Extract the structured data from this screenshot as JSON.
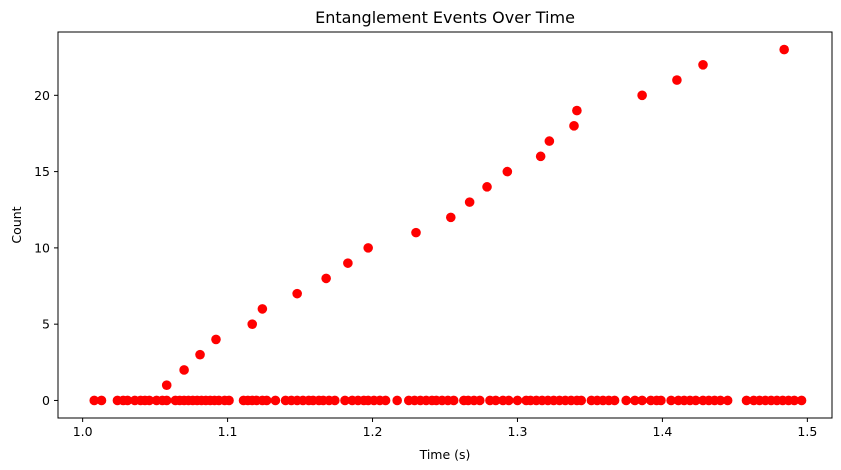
{
  "chart_data": {
    "type": "scatter",
    "title": "Entanglement Events Over Time",
    "xlabel": "Time (s)",
    "ylabel": "Count",
    "xlim": [
      0.983,
      1.517
    ],
    "ylim": [
      -1.15,
      24.15
    ],
    "xticks": [
      1.0,
      1.1,
      1.2,
      1.3,
      1.4,
      1.5
    ],
    "xtick_labels": [
      "1.0",
      "1.1",
      "1.2",
      "1.3",
      "1.4",
      "1.5"
    ],
    "yticks": [
      0,
      5,
      10,
      15,
      20
    ],
    "ytick_labels": [
      "0",
      "5",
      "10",
      "15",
      "20"
    ],
    "grid": false,
    "marker_color": "#ff0000",
    "series": [
      {
        "x": [
          1.008,
          1.013,
          1.024,
          1.028,
          1.031,
          1.036,
          1.04,
          1.043,
          1.046,
          1.051,
          1.055,
          1.058,
          1.064,
          1.067,
          1.07,
          1.073,
          1.076,
          1.079,
          1.082,
          1.085,
          1.088,
          1.091,
          1.094,
          1.098,
          1.101,
          1.111,
          1.114,
          1.117,
          1.12,
          1.124,
          1.127,
          1.133,
          1.14,
          1.144,
          1.148,
          1.152,
          1.156,
          1.159,
          1.163,
          1.166,
          1.17,
          1.174,
          1.181,
          1.186,
          1.19,
          1.194,
          1.197,
          1.201,
          1.205,
          1.209,
          1.217,
          1.225,
          1.229,
          1.233,
          1.237,
          1.241,
          1.244,
          1.248,
          1.252,
          1.256,
          1.263,
          1.266,
          1.27,
          1.274,
          1.281,
          1.285,
          1.29,
          1.294,
          1.3,
          1.306,
          1.309,
          1.313,
          1.317,
          1.321,
          1.325,
          1.329,
          1.333,
          1.337,
          1.341,
          1.344,
          1.351,
          1.355,
          1.359,
          1.363,
          1.367,
          1.375,
          1.381,
          1.386,
          1.392,
          1.396,
          1.399,
          1.406,
          1.411,
          1.415,
          1.419,
          1.423,
          1.428,
          1.432,
          1.436,
          1.44,
          1.445,
          1.458,
          1.463,
          1.467,
          1.471,
          1.475,
          1.479,
          1.483,
          1.487,
          1.491,
          1.496
        ],
        "y": [
          0,
          0,
          0,
          0,
          0,
          0,
          0,
          0,
          0,
          0,
          0,
          0,
          0,
          0,
          0,
          0,
          0,
          0,
          0,
          0,
          0,
          0,
          0,
          0,
          0,
          0,
          0,
          0,
          0,
          0,
          0,
          0,
          0,
          0,
          0,
          0,
          0,
          0,
          0,
          0,
          0,
          0,
          0,
          0,
          0,
          0,
          0,
          0,
          0,
          0,
          0,
          0,
          0,
          0,
          0,
          0,
          0,
          0,
          0,
          0,
          0,
          0,
          0,
          0,
          0,
          0,
          0,
          0,
          0,
          0,
          0,
          0,
          0,
          0,
          0,
          0,
          0,
          0,
          0,
          0,
          0,
          0,
          0,
          0,
          0,
          0,
          0,
          0,
          0,
          0,
          0,
          0,
          0,
          0,
          0,
          0,
          0,
          0,
          0,
          0,
          0,
          0,
          0,
          0,
          0,
          0,
          0,
          0,
          0,
          0,
          0
        ]
      },
      {
        "x": [
          1.058,
          1.07,
          1.081,
          1.092,
          1.117,
          1.124,
          1.148,
          1.168,
          1.183,
          1.197,
          1.23,
          1.254,
          1.267,
          1.279,
          1.293,
          1.316,
          1.322,
          1.339,
          1.341,
          1.386,
          1.41,
          1.428,
          1.484
        ],
        "y": [
          1,
          2,
          3,
          4,
          5,
          6,
          7,
          8,
          9,
          10,
          11,
          12,
          13,
          14,
          15,
          16,
          17,
          18,
          19,
          20,
          21,
          22,
          23
        ]
      }
    ]
  }
}
